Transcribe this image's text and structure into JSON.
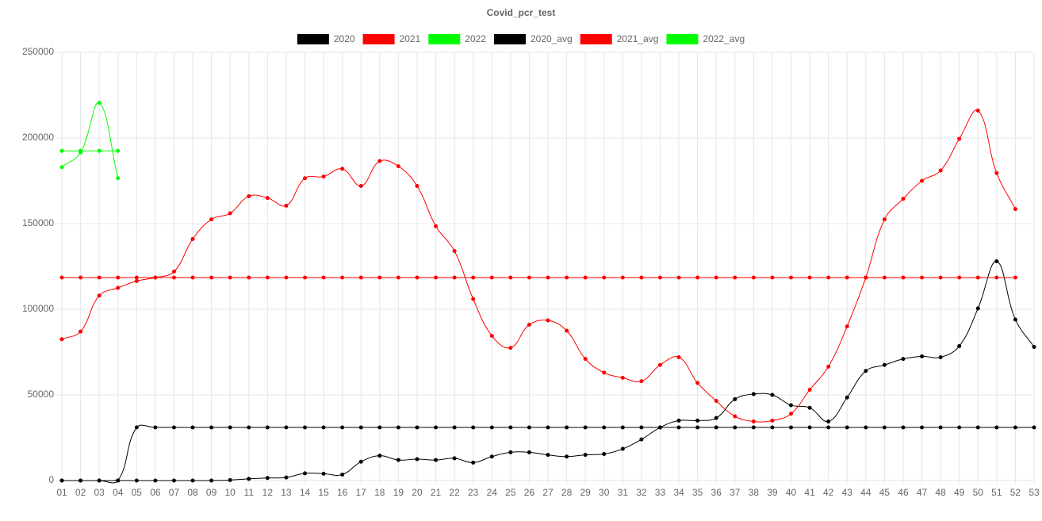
{
  "chart_data": {
    "type": "line",
    "title": "Covid_pcr_test",
    "categories": [
      "01",
      "02",
      "03",
      "04",
      "05",
      "06",
      "07",
      "08",
      "09",
      "10",
      "11",
      "12",
      "13",
      "14",
      "15",
      "16",
      "17",
      "18",
      "19",
      "20",
      "21",
      "22",
      "23",
      "24",
      "25",
      "26",
      "27",
      "28",
      "29",
      "30",
      "31",
      "32",
      "33",
      "34",
      "35",
      "36",
      "37",
      "38",
      "39",
      "40",
      "41",
      "42",
      "43",
      "44",
      "45",
      "46",
      "47",
      "48",
      "49",
      "50",
      "51",
      "52",
      "53"
    ],
    "ylim": [
      0,
      250000
    ],
    "yticks": [
      0,
      50000,
      100000,
      150000,
      200000,
      250000
    ],
    "grid": true,
    "legend": "top",
    "series": [
      {
        "name": "2020",
        "color": "#000000",
        "values": [
          0,
          0,
          0,
          0,
          0,
          0,
          0,
          0,
          0,
          300,
          1000,
          1500,
          1800,
          4200,
          4000,
          3500,
          11000,
          14500,
          12000,
          12500,
          12000,
          13000,
          10500,
          14000,
          16500,
          16500,
          15000,
          14000,
          15000,
          15500,
          18500,
          24000,
          31000,
          35000,
          35000,
          36500,
          47500,
          50500,
          50000,
          44000,
          42500,
          34500,
          48500,
          64000,
          67500,
          71000,
          72500,
          72000,
          78500,
          100500,
          128000,
          94000,
          78000
        ]
      },
      {
        "name": "2021",
        "color": "#ff0000",
        "values": [
          82500,
          87000,
          108000,
          112500,
          116500,
          118500,
          122000,
          141000,
          152500,
          156000,
          166000,
          165000,
          160500,
          176500,
          177500,
          182000,
          172000,
          186500,
          183500,
          172000,
          148500,
          134000,
          106000,
          84500,
          77500,
          91000,
          93500,
          87500,
          71000,
          63000,
          60000,
          58000,
          67500,
          72000,
          57000,
          46500,
          37500,
          34500,
          35000,
          39000,
          53000,
          66500,
          90000,
          118500,
          152500,
          164500,
          175000,
          181000,
          199500,
          216000,
          179500,
          158500,
          null
        ]
      },
      {
        "name": "2022",
        "color": "#00ff00",
        "values": [
          183000,
          191500,
          220500,
          176500,
          null,
          null,
          null,
          null,
          null,
          null,
          null,
          null,
          null,
          null,
          null,
          null,
          null,
          null,
          null,
          null,
          null,
          null,
          null,
          null,
          null,
          null,
          null,
          null,
          null,
          null,
          null,
          null,
          null,
          null,
          null,
          null,
          null,
          null,
          null,
          null,
          null,
          null,
          null,
          null,
          null,
          null,
          null,
          null,
          null,
          null,
          null,
          null,
          null
        ]
      },
      {
        "name": "2020_avg",
        "color": "#000000",
        "values": [
          0,
          0,
          0,
          0,
          31000,
          31000,
          31000,
          31000,
          31000,
          31000,
          31000,
          31000,
          31000,
          31000,
          31000,
          31000,
          31000,
          31000,
          31000,
          31000,
          31000,
          31000,
          31000,
          31000,
          31000,
          31000,
          31000,
          31000,
          31000,
          31000,
          31000,
          31000,
          31000,
          31000,
          31000,
          31000,
          31000,
          31000,
          31000,
          31000,
          31000,
          31000,
          31000,
          31000,
          31000,
          31000,
          31000,
          31000,
          31000,
          31000,
          31000,
          31000,
          31000
        ]
      },
      {
        "name": "2021_avg",
        "color": "#ff0000",
        "values": [
          118500,
          118500,
          118500,
          118500,
          118500,
          118500,
          118500,
          118500,
          118500,
          118500,
          118500,
          118500,
          118500,
          118500,
          118500,
          118500,
          118500,
          118500,
          118500,
          118500,
          118500,
          118500,
          118500,
          118500,
          118500,
          118500,
          118500,
          118500,
          118500,
          118500,
          118500,
          118500,
          118500,
          118500,
          118500,
          118500,
          118500,
          118500,
          118500,
          118500,
          118500,
          118500,
          118500,
          118500,
          118500,
          118500,
          118500,
          118500,
          118500,
          118500,
          118500,
          118500,
          null
        ]
      },
      {
        "name": "2022_avg",
        "color": "#00ff00",
        "values": [
          192500,
          192500,
          192500,
          192500,
          null,
          null,
          null,
          null,
          null,
          null,
          null,
          null,
          null,
          null,
          null,
          null,
          null,
          null,
          null,
          null,
          null,
          null,
          null,
          null,
          null,
          null,
          null,
          null,
          null,
          null,
          null,
          null,
          null,
          null,
          null,
          null,
          null,
          null,
          null,
          null,
          null,
          null,
          null,
          null,
          null,
          null,
          null,
          null,
          null,
          null,
          null,
          null,
          null
        ]
      }
    ]
  }
}
